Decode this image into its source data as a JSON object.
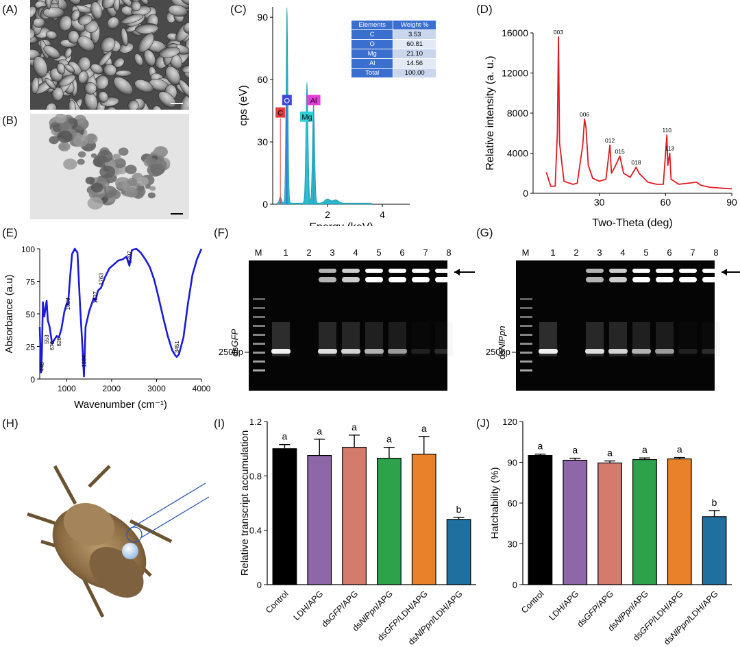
{
  "panels": {
    "A": "(A)",
    "B": "(B)",
    "C": "(C)",
    "D": "(D)",
    "E": "(E)",
    "F": "(F)",
    "G": "(G)",
    "H": "(H)",
    "I": "(I)",
    "J": "(J)"
  },
  "colors": {
    "edx": "#2bb5c8",
    "xrd": "#e0191f",
    "ftir": "#1a1adb",
    "table_header": "#3a6fd0",
    "bar_control": "#000000",
    "bar_ldh": "#8e67a8",
    "bar_dsgfp": "#d57b6e",
    "bar_dsnlppn": "#2ea24a",
    "bar_dsgfp_ldh": "#e8822a",
    "bar_dsnlppn_ldh": "#1f6f9f"
  },
  "edx_table": {
    "headers": [
      "Elements",
      "Weight %"
    ],
    "rows": [
      [
        "C",
        "3.53"
      ],
      [
        "O",
        "60.81"
      ],
      [
        "Mg",
        "21.10"
      ],
      [
        "Al",
        "14.56"
      ],
      [
        "Total",
        "100.00"
      ]
    ]
  },
  "edx_peaks": {
    "C": "C",
    "O": "O",
    "Mg": "Mg",
    "Al": "Al"
  },
  "gel_F": {
    "lanes": [
      "M",
      "1",
      "2",
      "3",
      "4",
      "5",
      "6",
      "7",
      "8"
    ],
    "side_label_prefix": "ds",
    "side_label_gene": "GFP",
    "marker": "250bp"
  },
  "gel_G": {
    "lanes": [
      "M",
      "1",
      "2",
      "3",
      "4",
      "5",
      "6",
      "7",
      "8"
    ],
    "side_label_prefix": "ds",
    "side_label_gene": "NlPpn",
    "marker": "250bp"
  },
  "chart_data": [
    {
      "panel": "C",
      "type": "area",
      "xlabel": "Energy (keV)",
      "ylabel": "cps (eV)",
      "xticks": [
        2,
        4
      ],
      "yticks": [
        0,
        30,
        60,
        90
      ],
      "ylim": [
        0,
        95
      ],
      "xlim": [
        0,
        5
      ],
      "peaks": [
        {
          "element": "C",
          "x": 0.28,
          "y": 3
        },
        {
          "element": "O",
          "x": 0.52,
          "y": 94
        },
        {
          "element": "Mg",
          "x": 1.25,
          "y": 58
        },
        {
          "element": "Al",
          "x": 1.49,
          "y": 48
        }
      ]
    },
    {
      "panel": "D",
      "type": "line",
      "xlabel": "Two-Theta (deg)",
      "ylabel": "Relative intensity (a. u.)",
      "xticks": [
        30,
        60,
        90
      ],
      "yticks": [
        0,
        4000,
        8000,
        12000,
        16000
      ],
      "xlim": [
        0,
        90
      ],
      "ylim": [
        0,
        16000
      ],
      "annotations": [
        {
          "label": "003",
          "x": 11.5,
          "y": 15600
        },
        {
          "label": "006",
          "x": 23.3,
          "y": 7400
        },
        {
          "label": "012",
          "x": 34.8,
          "y": 4800
        },
        {
          "label": "015",
          "x": 39.3,
          "y": 3700
        },
        {
          "label": "018",
          "x": 46.7,
          "y": 2600
        },
        {
          "label": "110",
          "x": 60.6,
          "y": 5800
        },
        {
          "label": "113",
          "x": 61.9,
          "y": 4000
        }
      ],
      "points": [
        [
          6,
          2100
        ],
        [
          8,
          700
        ],
        [
          10,
          700
        ],
        [
          11,
          6000
        ],
        [
          11.5,
          15600
        ],
        [
          12,
          5000
        ],
        [
          14,
          1200
        ],
        [
          18,
          900
        ],
        [
          20,
          1000
        ],
        [
          22.5,
          4800
        ],
        [
          23.3,
          7400
        ],
        [
          24,
          6500
        ],
        [
          25,
          2800
        ],
        [
          27,
          1500
        ],
        [
          30,
          1200
        ],
        [
          33,
          1400
        ],
        [
          34.8,
          4800
        ],
        [
          35.5,
          2000
        ],
        [
          37,
          2600
        ],
        [
          39.3,
          3700
        ],
        [
          41,
          2000
        ],
        [
          44,
          1600
        ],
        [
          46.7,
          2600
        ],
        [
          48,
          2000
        ],
        [
          52,
          1100
        ],
        [
          56,
          900
        ],
        [
          59,
          900
        ],
        [
          60.6,
          5800
        ],
        [
          61,
          2800
        ],
        [
          61.9,
          4000
        ],
        [
          62.5,
          1400
        ],
        [
          66,
          900
        ],
        [
          70,
          1000
        ],
        [
          74,
          1100
        ],
        [
          76,
          800
        ],
        [
          80,
          600
        ],
        [
          86,
          500
        ],
        [
          90,
          450
        ]
      ]
    },
    {
      "panel": "E",
      "type": "line",
      "xlabel": "Wavenumber (cm⁻¹)",
      "ylabel": "Absorbance (a.u)",
      "xticks": [
        1000,
        2000,
        3000,
        4000
      ],
      "yticks": [
        0,
        25,
        50,
        75,
        100
      ],
      "xlim": [
        400,
        4000
      ],
      "ylim": [
        0,
        100
      ],
      "annotations": [
        {
          "label": "448",
          "x": 448,
          "y": 6
        },
        {
          "label": "553",
          "x": 553,
          "y": 27
        },
        {
          "label": "676",
          "x": 676,
          "y": 22
        },
        {
          "label": "826",
          "x": 826,
          "y": 25
        },
        {
          "label": "1028",
          "x": 1028,
          "y": 53
        },
        {
          "label": "1384",
          "x": 1384,
          "y": 9
        },
        {
          "label": "1637",
          "x": 1637,
          "y": 58
        },
        {
          "label": "1763",
          "x": 1763,
          "y": 72
        },
        {
          "label": "2397",
          "x": 2397,
          "y": 89
        },
        {
          "label": "3451",
          "x": 3451,
          "y": 20
        }
      ],
      "points": [
        [
          400,
          40
        ],
        [
          430,
          5
        ],
        [
          448,
          20
        ],
        [
          470,
          59
        ],
        [
          500,
          48
        ],
        [
          553,
          60
        ],
        [
          580,
          45
        ],
        [
          620,
          40
        ],
        [
          676,
          27
        ],
        [
          720,
          30
        ],
        [
          780,
          33
        ],
        [
          826,
          32
        ],
        [
          880,
          38
        ],
        [
          950,
          52
        ],
        [
          1000,
          58
        ],
        [
          1028,
          57
        ],
        [
          1080,
          80
        ],
        [
          1120,
          96
        ],
        [
          1180,
          100
        ],
        [
          1240,
          97
        ],
        [
          1300,
          55
        ],
        [
          1350,
          25
        ],
        [
          1384,
          2
        ],
        [
          1420,
          40
        ],
        [
          1500,
          52
        ],
        [
          1600,
          62
        ],
        [
          1637,
          60
        ],
        [
          1700,
          68
        ],
        [
          1763,
          70
        ],
        [
          1850,
          78
        ],
        [
          1950,
          85
        ],
        [
          2050,
          88
        ],
        [
          2150,
          91
        ],
        [
          2250,
          92
        ],
        [
          2330,
          94
        ],
        [
          2397,
          87
        ],
        [
          2450,
          99
        ],
        [
          2550,
          100
        ],
        [
          2650,
          97
        ],
        [
          2750,
          92
        ],
        [
          2850,
          86
        ],
        [
          2950,
          76
        ],
        [
          3050,
          62
        ],
        [
          3150,
          47
        ],
        [
          3250,
          33
        ],
        [
          3350,
          22
        ],
        [
          3420,
          18
        ],
        [
          3451,
          17
        ],
        [
          3500,
          19
        ],
        [
          3600,
          32
        ],
        [
          3700,
          58
        ],
        [
          3800,
          80
        ],
        [
          3900,
          92
        ],
        [
          4000,
          100
        ]
      ]
    },
    {
      "panel": "I",
      "type": "bar",
      "ylabel": "Relative transcript accumulation",
      "ylim": [
        0,
        1.2
      ],
      "yticks": [
        0,
        0.4,
        0.8,
        1.2
      ],
      "categories": [
        "Control",
        "LDH/APG",
        "dsGFP/APG",
        "dsNlPpn/APG",
        "dsGFP/LDH/APG",
        "dsNlPpn/LDH/APG"
      ],
      "values": [
        1.0,
        0.95,
        1.01,
        0.93,
        0.96,
        0.48
      ],
      "errors": [
        0.03,
        0.12,
        0.09,
        0.08,
        0.13,
        0.015
      ],
      "letters": [
        "a",
        "a",
        "a",
        "a",
        "a",
        "b"
      ]
    },
    {
      "panel": "J",
      "type": "bar",
      "ylabel": "Hatchability (%)",
      "ylim": [
        0,
        120
      ],
      "yticks": [
        0,
        30,
        60,
        90,
        120
      ],
      "categories": [
        "Control",
        "LDH/APG",
        "dsGFP/APG",
        "dsNlPpn/APG",
        "dsGFP/LDH/APG",
        "dsNlPpn/LDH/APG"
      ],
      "values": [
        95,
        91.5,
        89.5,
        92,
        92.5,
        50
      ],
      "errors": [
        1.0,
        1.5,
        1.5,
        1.2,
        1.0,
        4.5
      ],
      "letters": [
        "a",
        "a",
        "a",
        "a",
        "a",
        "b"
      ]
    }
  ]
}
